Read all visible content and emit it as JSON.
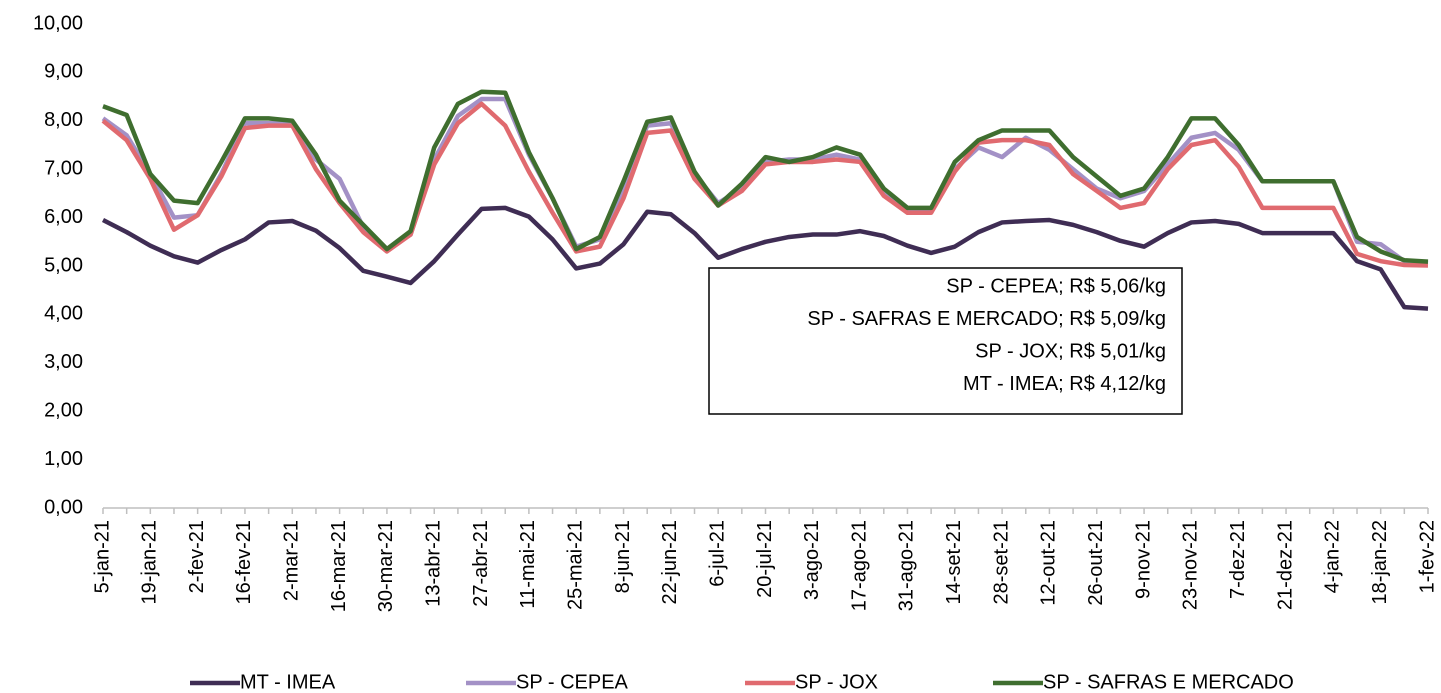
{
  "chart_data": {
    "type": "line",
    "categories": [
      "5-jan-21",
      null,
      "19-jan-21",
      null,
      "2-fev-21",
      null,
      "16-fev-21",
      null,
      "2-mar-21",
      null,
      "16-mar-21",
      null,
      "30-mar-21",
      null,
      "13-abr-21",
      null,
      "27-abr-21",
      null,
      "11-mai-21",
      null,
      "25-mai-21",
      null,
      "8-jun-21",
      null,
      "22-jun-21",
      null,
      "6-jul-21",
      null,
      "20-jul-21",
      null,
      "3-ago-21",
      null,
      "17-ago-21",
      null,
      "31-ago-21",
      null,
      "14-set-21",
      null,
      "28-set-21",
      null,
      "12-out-21",
      null,
      "26-out-21",
      null,
      "9-nov-21",
      null,
      "23-nov-21",
      null,
      "7-dez-21",
      null,
      "21-dez-21",
      null,
      "4-jan-22",
      null,
      "18-jan-22",
      null,
      "1-fev-22"
    ],
    "series": [
      {
        "name": "MT - IMEA",
        "color": "#3f2d54",
        "values": [
          5.95,
          5.7,
          5.42,
          5.2,
          5.07,
          5.33,
          5.55,
          5.9,
          5.93,
          5.73,
          5.37,
          4.9,
          4.78,
          4.65,
          5.1,
          5.65,
          6.18,
          6.2,
          6.02,
          5.55,
          4.95,
          5.05,
          5.45,
          6.12,
          6.07,
          5.68,
          5.17,
          5.35,
          5.5,
          5.6,
          5.65,
          5.65,
          5.72,
          5.62,
          5.42,
          5.27,
          5.4,
          5.7,
          5.9,
          5.93,
          5.95,
          5.85,
          5.7,
          5.52,
          5.4,
          5.68,
          5.9,
          5.93,
          5.87,
          5.68,
          5.68,
          5.68,
          5.68,
          5.1,
          4.93,
          4.15,
          4.12
        ]
      },
      {
        "name": "SP - CEPEA",
        "color": "#a391c6",
        "values": [
          8.05,
          7.7,
          6.9,
          6.0,
          6.05,
          6.9,
          7.95,
          7.95,
          7.95,
          7.2,
          6.8,
          5.8,
          5.35,
          5.65,
          7.2,
          8.1,
          8.45,
          8.45,
          7.3,
          6.4,
          5.4,
          5.55,
          6.6,
          7.9,
          7.95,
          6.9,
          6.3,
          6.6,
          7.15,
          7.2,
          7.2,
          7.3,
          7.2,
          6.5,
          6.15,
          6.15,
          7.0,
          7.45,
          7.25,
          7.65,
          7.4,
          7.0,
          6.6,
          6.4,
          6.55,
          7.1,
          7.65,
          7.75,
          7.4,
          6.75,
          6.75,
          6.75,
          6.75,
          5.5,
          5.45,
          5.1,
          5.06
        ]
      },
      {
        "name": "SP - JOX",
        "color": "#e06a6f",
        "values": [
          8.0,
          7.6,
          6.8,
          5.75,
          6.05,
          6.85,
          7.85,
          7.9,
          7.9,
          7.0,
          6.3,
          5.7,
          5.3,
          5.65,
          7.1,
          7.95,
          8.35,
          7.9,
          6.95,
          6.1,
          5.3,
          5.4,
          6.4,
          7.75,
          7.8,
          6.8,
          6.25,
          6.55,
          7.1,
          7.15,
          7.15,
          7.2,
          7.15,
          6.45,
          6.1,
          6.1,
          6.95,
          7.55,
          7.6,
          7.6,
          7.5,
          6.9,
          6.55,
          6.2,
          6.3,
          7.0,
          7.5,
          7.6,
          7.05,
          6.2,
          6.2,
          6.2,
          6.2,
          5.25,
          5.1,
          5.02,
          5.01
        ]
      },
      {
        "name": "SP - SAFRAS E MERCADO",
        "color": "#3f6e2f",
        "values": [
          8.3,
          8.12,
          6.9,
          6.35,
          6.3,
          7.15,
          8.05,
          8.05,
          8.0,
          7.3,
          6.35,
          5.85,
          5.35,
          5.72,
          7.45,
          8.35,
          8.6,
          8.58,
          7.35,
          6.4,
          5.35,
          5.6,
          6.75,
          7.98,
          8.07,
          6.95,
          6.25,
          6.7,
          7.25,
          7.15,
          7.25,
          7.45,
          7.3,
          6.6,
          6.2,
          6.2,
          7.15,
          7.6,
          7.8,
          7.8,
          7.8,
          7.25,
          6.85,
          6.45,
          6.6,
          7.25,
          8.05,
          8.05,
          7.5,
          6.75,
          6.75,
          6.75,
          6.75,
          5.6,
          5.3,
          5.12,
          5.09
        ]
      }
    ],
    "ylim": [
      0,
      10
    ],
    "yticks": [
      {
        "value": 0,
        "label": "0,00"
      },
      {
        "value": 1,
        "label": "1,00"
      },
      {
        "value": 2,
        "label": "2,00"
      },
      {
        "value": 3,
        "label": "3,00"
      },
      {
        "value": 4,
        "label": "4,00"
      },
      {
        "value": 5,
        "label": "5,00"
      },
      {
        "value": 6,
        "label": "6,00"
      },
      {
        "value": 7,
        "label": "7,00"
      },
      {
        "value": 8,
        "label": "8,00"
      },
      {
        "value": 9,
        "label": "9,00"
      },
      {
        "value": 10,
        "label": "10,00"
      }
    ],
    "annotations": [
      "SP - CEPEA; R$ 5,06/kg",
      "SP - SAFRAS E MERCADO; R$ 5,09/kg",
      "SP - JOX; R$ 5,01/kg",
      "MT - IMEA; R$ 4,12/kg"
    ],
    "legend": "bottom"
  }
}
